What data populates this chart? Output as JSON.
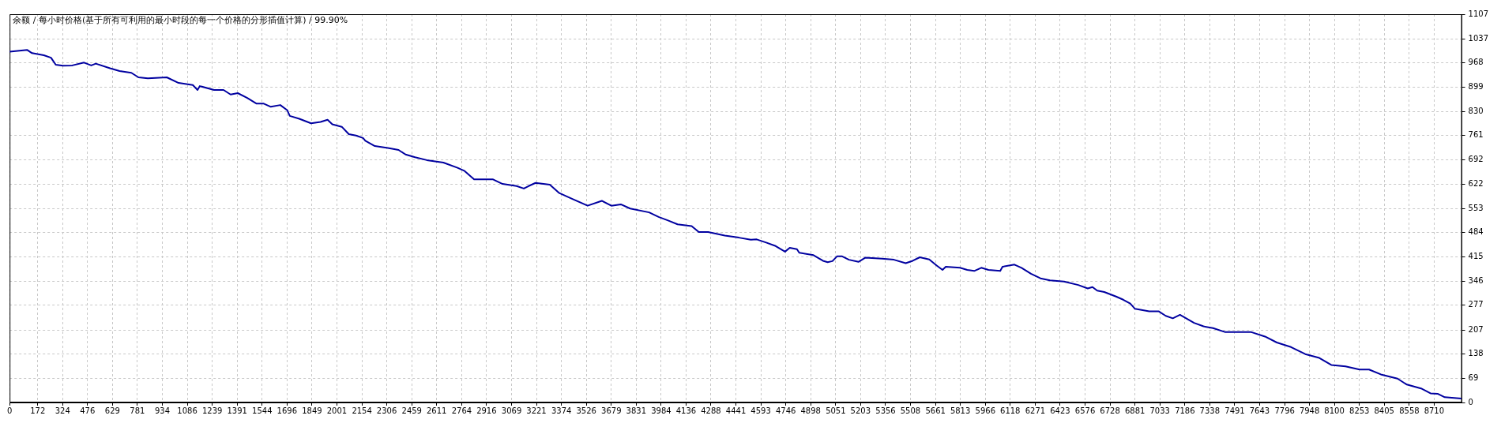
{
  "chart_data": {
    "type": "line",
    "title": "余额 / 每小时价格(基于所有可利用的最小时段的每一个价格的分形插值计算) / 99.90%",
    "x": [
      0,
      108,
      137,
      209,
      253,
      282,
      325,
      383,
      455,
      499,
      527,
      614,
      672,
      744,
      788,
      845,
      961,
      1033,
      1120,
      1149,
      1163,
      1250,
      1308,
      1351,
      1395,
      1453,
      1510,
      1554,
      1597,
      1655,
      1698,
      1713,
      1771,
      1843,
      1901,
      1944,
      1973,
      2031,
      2074,
      2118,
      2161,
      2175,
      2233,
      2320,
      2378,
      2421,
      2479,
      2551,
      2652,
      2739,
      2782,
      2840,
      2898,
      2956,
      3014,
      3100,
      3144,
      3173,
      3216,
      3303,
      3361,
      3433,
      3534,
      3621,
      3679,
      3737,
      3794,
      3910,
      3968,
      4026,
      4084,
      4170,
      4214,
      4271,
      4373,
      4459,
      4532,
      4568,
      4626,
      4684,
      4741,
      4770,
      4814,
      4828,
      4915,
      4973,
      5002,
      5031,
      5060,
      5088,
      5132,
      5190,
      5233,
      5334,
      5407,
      5479,
      5522,
      5565,
      5623,
      5667,
      5704,
      5724,
      5811,
      5855,
      5898,
      5941,
      5985,
      6057,
      6071,
      6144,
      6187,
      6245,
      6303,
      6361,
      6447,
      6534,
      6592,
      6621,
      6650,
      6693,
      6765,
      6809,
      6852,
      6881,
      6968,
      7025,
      7069,
      7112,
      7156,
      7242,
      7300,
      7358,
      7430,
      7517,
      7589,
      7676,
      7748,
      7835,
      7922,
      8008,
      8081,
      8168,
      8254,
      8312,
      8384,
      8486,
      8543,
      8630,
      8688,
      8731,
      8775,
      8876
    ],
    "series": [
      {
        "color": "#0000a0",
        "values": [
          1000,
          1005,
          996,
          990,
          983,
          963,
          960,
          961,
          969,
          961,
          966,
          953,
          945,
          940,
          927,
          924,
          927,
          911,
          905,
          891,
          902,
          891,
          891,
          878,
          882,
          868,
          852,
          852,
          843,
          848,
          833,
          817,
          809,
          796,
          800,
          806,
          793,
          786,
          765,
          761,
          754,
          746,
          731,
          725,
          720,
          707,
          699,
          691,
          684,
          669,
          660,
          636,
          636,
          636,
          623,
          617,
          610,
          617,
          626,
          621,
          597,
          582,
          561,
          575,
          561,
          565,
          553,
          542,
          529,
          519,
          508,
          503,
          486,
          486,
          476,
          470,
          464,
          465,
          456,
          446,
          430,
          441,
          437,
          427,
          420,
          404,
          400,
          403,
          417,
          417,
          407,
          401,
          413,
          410,
          407,
          397,
          404,
          414,
          408,
          391,
          378,
          387,
          384,
          378,
          375,
          384,
          378,
          375,
          387,
          393,
          384,
          367,
          354,
          348,
          345,
          335,
          325,
          329,
          319,
          315,
          302,
          293,
          282,
          267,
          260,
          260,
          247,
          240,
          250,
          227,
          217,
          212,
          201,
          201,
          201,
          188,
          171,
          158,
          138,
          127,
          107,
          103,
          94,
          94,
          80,
          68,
          51,
          40,
          26,
          25,
          15,
          11
        ]
      }
    ],
    "xlim": [
      0,
      8880
    ],
    "xticks": [
      0,
      172,
      324,
      476,
      629,
      781,
      934,
      1086,
      1239,
      1391,
      1544,
      1696,
      1849,
      2001,
      2154,
      2306,
      2459,
      2611,
      2764,
      2916,
      3069,
      3221,
      3374,
      3526,
      3679,
      3831,
      3984,
      4136,
      4288,
      4441,
      4593,
      4746,
      4898,
      5051,
      5203,
      5356,
      5508,
      5661,
      5813,
      5966,
      6118,
      6271,
      6423,
      6576,
      6728,
      6881,
      7033,
      7186,
      7338,
      7491,
      7643,
      7796,
      7948,
      8100,
      8253,
      8405,
      8558,
      8710
    ],
    "ylim": [
      0,
      1107
    ],
    "yticks": [
      0,
      69,
      138,
      207,
      277,
      346,
      415,
      484,
      553,
      622,
      692,
      761,
      830,
      899,
      968,
      1037,
      1107
    ],
    "grid": true,
    "legend": false,
    "marker": "none",
    "line_style": "solid"
  }
}
